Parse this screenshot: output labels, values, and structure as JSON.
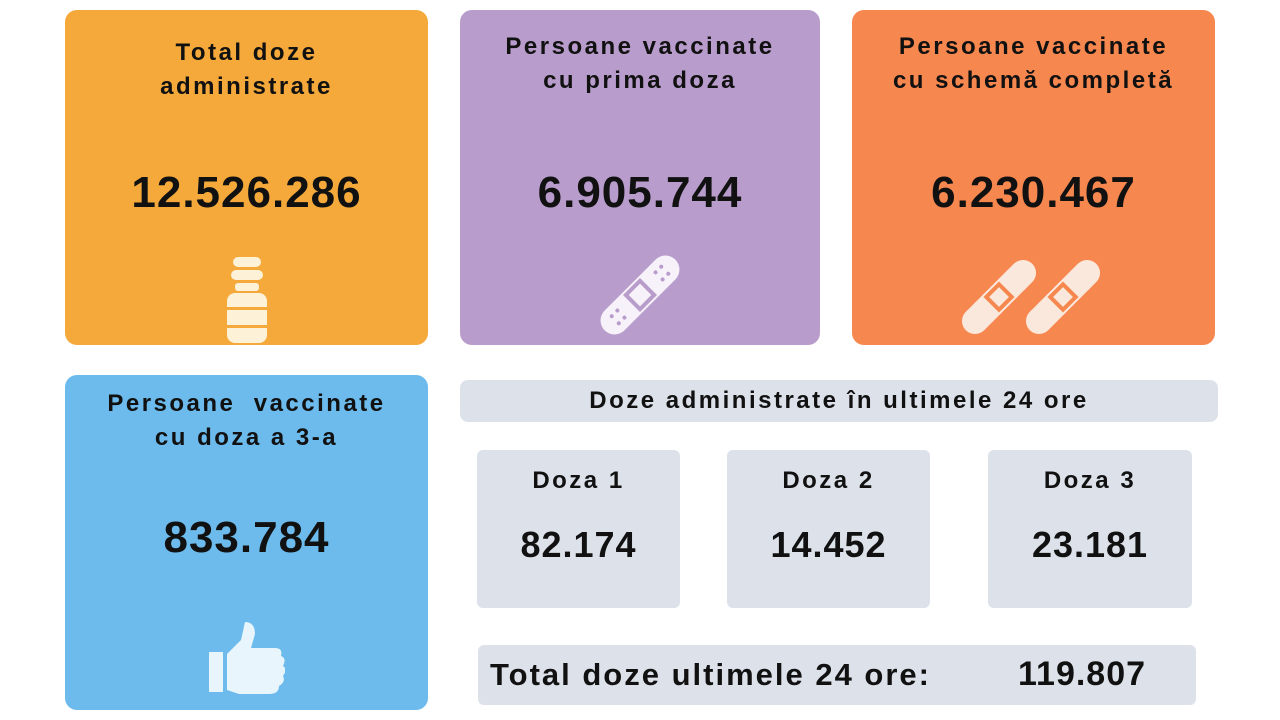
{
  "cards": [
    {
      "title": [
        "Total doze",
        "administrate"
      ],
      "value": "12.526.286"
    },
    {
      "title": [
        "Persoane vaccinate",
        "cu prima doza"
      ],
      "value": "6.905.744"
    },
    {
      "title": [
        "Persoane vaccinate",
        "cu schemă completă"
      ],
      "value": "6.230.467"
    },
    {
      "title": [
        "Persoane  vaccinate",
        "cu doza a 3-a"
      ],
      "value": "833.784"
    }
  ],
  "last_24h": {
    "title": "Doze administrate în ultimele 24 ore",
    "doses": [
      {
        "label": "Doza 1",
        "value": "82.174"
      },
      {
        "label": "Doza 2",
        "value": "14.452"
      },
      {
        "label": "Doza 3",
        "value": "23.181"
      }
    ],
    "total": {
      "label": "Total doze ultimele 24 ore:",
      "value": "119.807"
    }
  }
}
